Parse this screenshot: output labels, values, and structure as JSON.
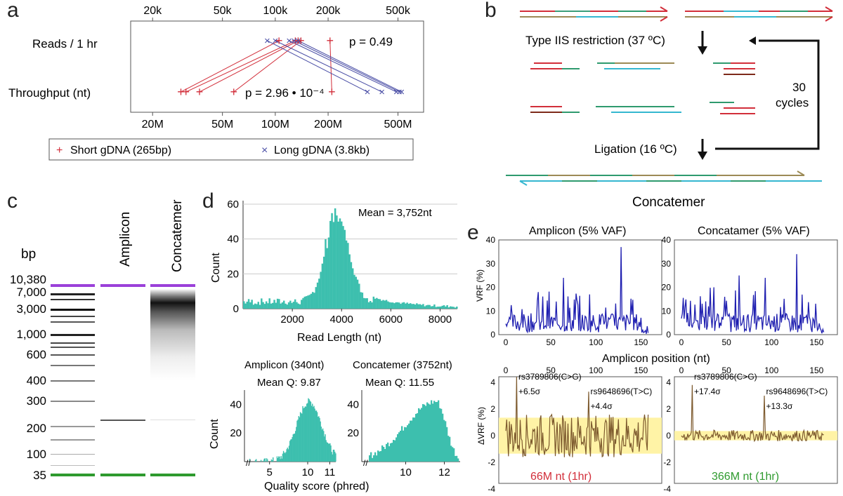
{
  "colors": {
    "red": "#d22e3a",
    "blue": "#4b4fa6",
    "teal": "#3dbfae",
    "purple": "#9b40d9",
    "green": "#2e9a2e",
    "darkblue": "#1f1fb0",
    "brown": "#7d5a2e",
    "yellow": "#fff3a6",
    "cyan": "#35b7d0",
    "olive": "#9c8a55"
  },
  "panel_a": {
    "label": "a",
    "top_ticks": [
      "20k",
      "50k",
      "100k",
      "200k",
      "500k"
    ],
    "bottom_ticks": [
      "20M",
      "50M",
      "100M",
      "200M",
      "500M"
    ],
    "row1_label": "Reads / 1 hr",
    "row2_label": "Throughput (nt)",
    "p1": "p = 0.49",
    "p2": "p = 2.96 • 10⁻⁴",
    "legend_short": "Short gDNA (265bp)",
    "legend_long": "Long gDNA (3.8kb)",
    "reads_short_k": [
      105,
      130,
      135,
      140,
      205
    ],
    "reads_long_k": [
      90,
      100,
      120,
      128,
      135
    ],
    "throughput_short_M": [
      29,
      31,
      37,
      58,
      210
    ],
    "throughput_long_M": [
      335,
      405,
      490,
      510,
      525
    ]
  },
  "panel_b": {
    "label": "b",
    "step1": "Type IIS restriction (37 ºC)",
    "step2": "Ligation (16 ºC)",
    "cycles": "30\ncycles",
    "product": "Concatemer"
  },
  "panel_c": {
    "label": "c",
    "bp": "bp",
    "ladder": [
      "10,380",
      "7,000",
      "3,000",
      "1,000",
      "600",
      "400",
      "300",
      "200",
      "100",
      "35"
    ],
    "lane1": "Amplicon",
    "lane2": "Concatemer"
  },
  "panel_d": {
    "label": "d",
    "hist_xlabel": "Read Length (nt)",
    "hist_ylabel": "Count",
    "hist_mean": "Mean = 3,752nt",
    "hist_xticks": [
      "2000",
      "4000",
      "6000",
      "8000"
    ],
    "hist_yticks": [
      "0",
      "20",
      "40",
      "60"
    ],
    "q_amplicon_title": "Amplicon (340nt)",
    "q_amplicon_mean": "Mean Q: 9.87",
    "q_concat_title": "Concatemer (3752nt)",
    "q_concat_mean": "Mean Q: 11.55",
    "q_ylabel": "Count",
    "q_xlabel": "Quality score (phred)",
    "q_amp_xticks": [
      "5",
      "10",
      "11"
    ],
    "q_con_xticks": [
      "10",
      "12"
    ],
    "q_yticks": [
      "20",
      "40"
    ]
  },
  "panel_e": {
    "label": "e",
    "title_left": "Amplicon (5% VAF)",
    "title_right": "Concatamer (5% VAF)",
    "vrf_ylabel": "VRF (%)",
    "dvrf_ylabel": "ΔVRF (%)",
    "xlabel": "Amplicon position (nt)",
    "vrf_yticks": [
      "0",
      "10",
      "20",
      "30",
      "40"
    ],
    "dvrf_yticks": [
      "-4",
      "-2",
      "0",
      "2",
      "4"
    ],
    "xticks": [
      "0",
      "50",
      "100",
      "150"
    ],
    "ann_left_1": "rs3789806(C>G)",
    "ann_left_1s": "+6.5σ",
    "ann_left_2": "rs9648696(T>C)",
    "ann_left_2s": "+4.4σ",
    "ann_right_1": "rs3789806(C>G)",
    "ann_right_1s": "+17.4σ",
    "ann_right_2": "rs9648696(T>C)",
    "ann_right_2s": "+13.3σ",
    "foot_left": "66M nt (1hr)",
    "foot_right": "366M nt (1hr)"
  },
  "chart_data": [
    {
      "type": "scatter",
      "title": "",
      "series": [
        {
          "name": "Short gDNA (265bp)",
          "reads_k": [
            105,
            130,
            135,
            140,
            205
          ],
          "throughput_M": [
            29,
            31,
            37,
            58,
            210
          ]
        },
        {
          "name": "Long gDNA (3.8kb)",
          "reads_k": [
            90,
            100,
            120,
            128,
            135
          ],
          "throughput_M": [
            335,
            405,
            490,
            510,
            525
          ]
        }
      ],
      "xscale": "log",
      "annotations": [
        "p = 0.49",
        "p = 2.96 • 10⁻⁴"
      ]
    },
    {
      "type": "bar",
      "xlabel": "Read Length (nt)",
      "ylabel": "Count",
      "xlim": [
        0,
        8700
      ],
      "ylim": [
        0,
        62
      ],
      "annotation": "Mean = 3,752nt"
    },
    {
      "type": "bar",
      "title": "Amplicon (340nt)",
      "annotation": "Mean Q: 9.87",
      "xlabel": "Quality score (phred)",
      "ylabel": "Count"
    },
    {
      "type": "bar",
      "title": "Concatemer (3752nt)",
      "annotation": "Mean Q: 11.55",
      "xlabel": "Quality score (phred)"
    },
    {
      "type": "line",
      "title": "Amplicon (5% VAF)",
      "ylabel": "VRF (%)",
      "ylim": [
        0,
        40
      ],
      "xlim": [
        0,
        170
      ]
    },
    {
      "type": "line",
      "title": "Concatamer (5% VAF)",
      "ylim": [
        0,
        40
      ],
      "xlim": [
        0,
        170
      ]
    }
  ]
}
